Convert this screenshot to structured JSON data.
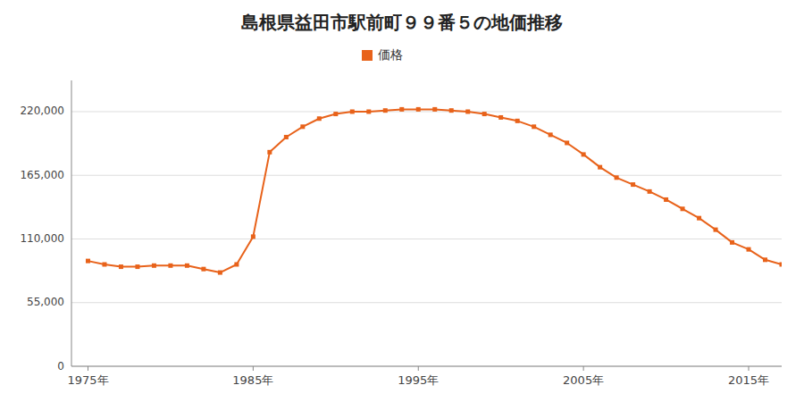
{
  "chart_data": {
    "type": "line",
    "title": "島根県益田市駅前町９９番５の地価推移",
    "x": [
      1975,
      1976,
      1977,
      1978,
      1979,
      1980,
      1981,
      1982,
      1983,
      1984,
      1985,
      1986,
      1987,
      1988,
      1989,
      1990,
      1991,
      1992,
      1993,
      1994,
      1995,
      1996,
      1997,
      1998,
      1999,
      2000,
      2001,
      2002,
      2003,
      2004,
      2005,
      2006,
      2007,
      2008,
      2009,
      2010,
      2011,
      2012,
      2013,
      2014,
      2015,
      2016,
      2017
    ],
    "series": [
      {
        "name": "価格",
        "color": "#e8621a",
        "marker": "square",
        "values": [
          91000,
          88000,
          86000,
          86000,
          87000,
          87000,
          87000,
          84000,
          81000,
          88000,
          112000,
          185000,
          198000,
          207000,
          214000,
          218000,
          220000,
          220000,
          221000,
          222000,
          222000,
          222000,
          221000,
          220000,
          218000,
          215000,
          212000,
          207000,
          200000,
          193000,
          183000,
          172000,
          163000,
          157000,
          151000,
          144000,
          136000,
          128000,
          118000,
          107000,
          101000,
          92000,
          88000
        ]
      }
    ],
    "xlim": [
      1974,
      2017
    ],
    "ylim": [
      0,
      247000
    ],
    "xticks": [
      {
        "value": 1975,
        "label": "1975年"
      },
      {
        "value": 1985,
        "label": "1985年"
      },
      {
        "value": 1995,
        "label": "1995年"
      },
      {
        "value": 2005,
        "label": "2005年"
      },
      {
        "value": 2015,
        "label": "2015年"
      }
    ],
    "yticks": [
      0,
      {
        "value": 55000,
        "label": "55,000"
      },
      {
        "value": 110000,
        "label": "110,000"
      },
      {
        "value": 165000,
        "label": "165,000"
      },
      {
        "value": 220000,
        "label": "220,000"
      }
    ],
    "grid": true,
    "legend": "top"
  }
}
